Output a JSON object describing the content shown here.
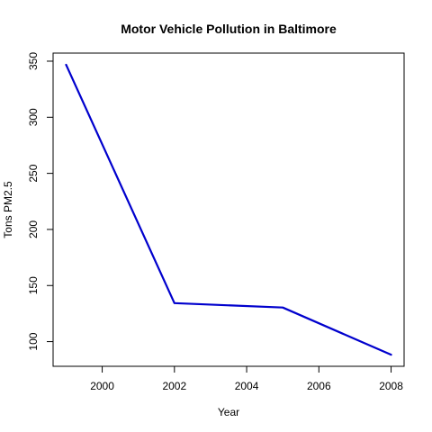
{
  "chart_data": {
    "type": "line",
    "title": "Motor Vehicle Pollution in Baltimore",
    "xlabel": "Year",
    "ylabel": "Tons PM2.5",
    "x": [
      1999,
      2002,
      2005,
      2008
    ],
    "series": [
      {
        "values": [
          346.8,
          134.3,
          130.4,
          88.3
        ],
        "color": "#0000cd"
      }
    ],
    "xticks": [
      2000,
      2002,
      2004,
      2006,
      2008
    ],
    "yticks": [
      100,
      150,
      200,
      250,
      300,
      350
    ],
    "xlim": [
      1998.64,
      2008.36
    ],
    "ylim": [
      78.0,
      357.2
    ],
    "grid": false,
    "legend": "none"
  }
}
